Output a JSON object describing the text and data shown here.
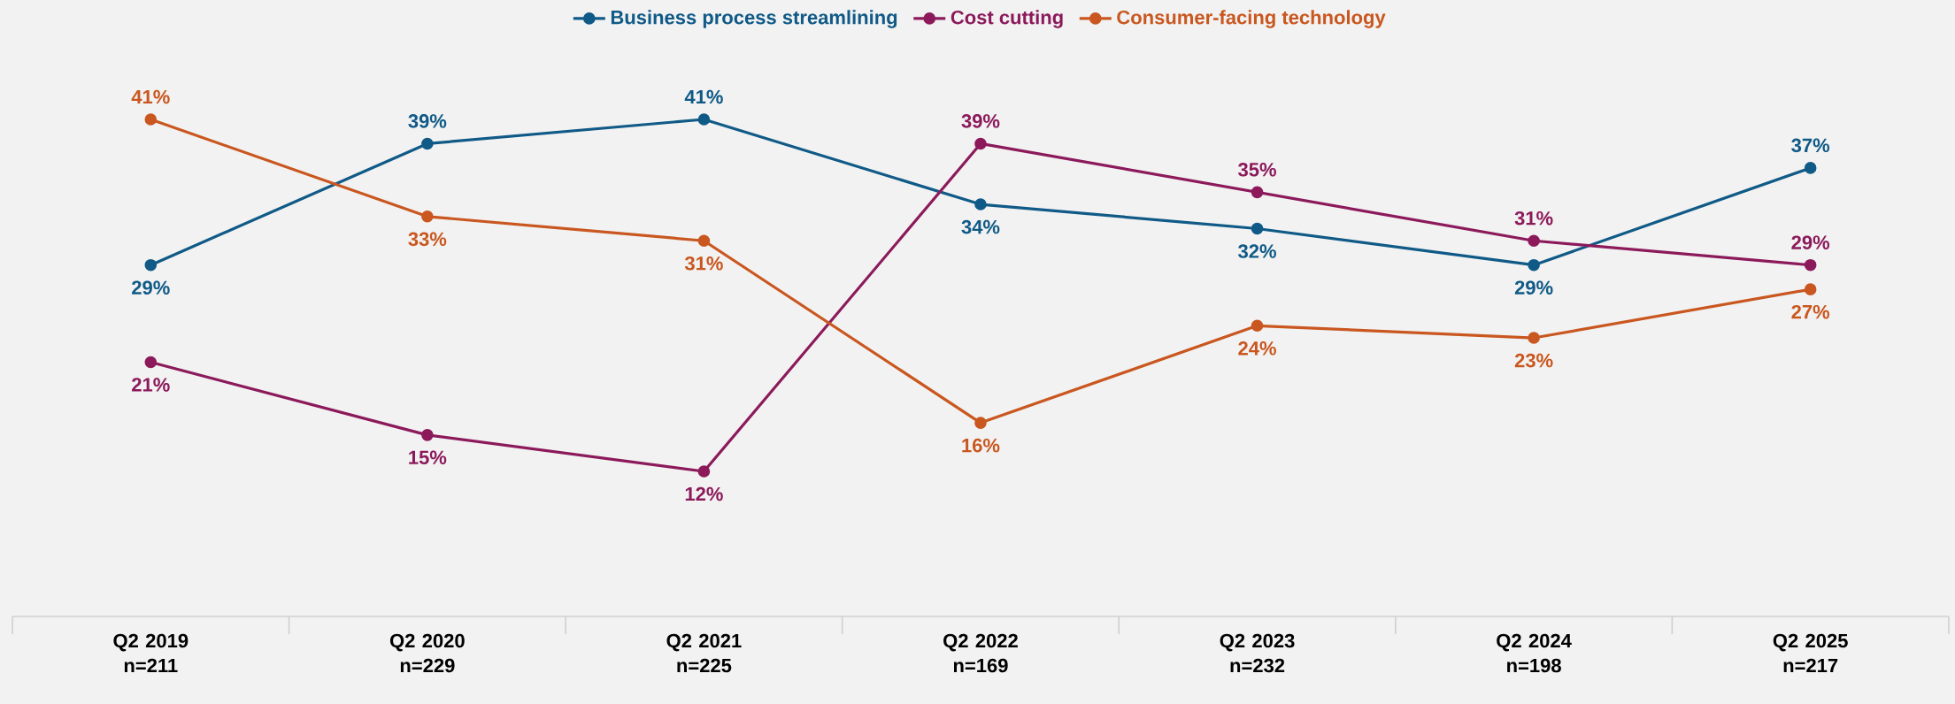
{
  "chart_data": {
    "type": "line",
    "categories": [
      "Q2 2019 n=211",
      "Q2 2020 n=229",
      "Q2 2021 n=225",
      "Q2 2022 n=169",
      "Q2 2023 n=232",
      "Q2 2024 n=198",
      "Q2 2025 n=217"
    ],
    "series": [
      {
        "name": "Business process streamlining",
        "color": "#105a87",
        "values": [
          29,
          39,
          41,
          34,
          32,
          29,
          37
        ],
        "value_labels": [
          "29%",
          "39%",
          "41%",
          "34%",
          "32%",
          "29%",
          "37%"
        ]
      },
      {
        "name": "Cost cutting",
        "color": "#8c1a5b",
        "values": [
          21,
          15,
          12,
          39,
          35,
          31,
          29
        ],
        "value_labels": [
          "21%",
          "15%",
          "12%",
          "39%",
          "35%",
          "31%",
          "29%"
        ]
      },
      {
        "name": "Consumer-facing technology",
        "color": "#c9571f",
        "values": [
          41,
          33,
          31,
          16,
          24,
          23,
          27
        ],
        "value_labels": [
          "41%",
          "33%",
          "31%",
          "16%",
          "24%",
          "23%",
          "27%"
        ]
      }
    ],
    "tick_labels": "x",
    "legend": "top",
    "marker": "circle",
    "line_style": "solid",
    "grid": false
  }
}
